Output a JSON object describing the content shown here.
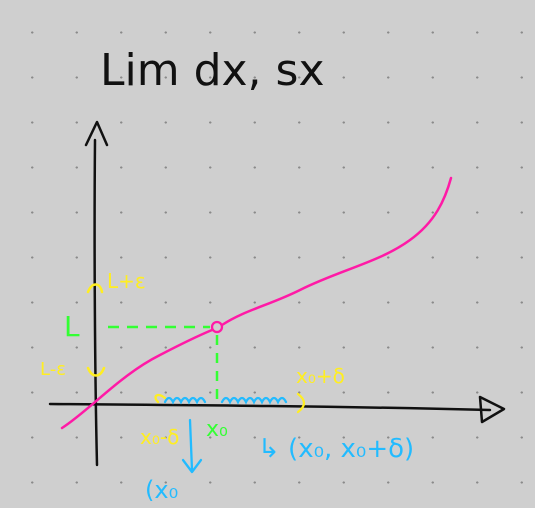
{
  "title": "Lim dx, sx",
  "labels": {
    "y_upper": "L+ε",
    "y_value": "L",
    "y_lower": "L-ε",
    "x_right": "x₀+δ",
    "x_left": "x₀-δ",
    "x_point": "x₀",
    "left_interval": "(x₀",
    "right_interval": "↳ (x₀, x₀+δ)"
  },
  "colors": {
    "curve": "#ff1aa6",
    "green": "#33ff33",
    "yellow": "#ffee22",
    "blue": "#22bbff",
    "ink": "#111111",
    "background": "#cfcfcf"
  }
}
